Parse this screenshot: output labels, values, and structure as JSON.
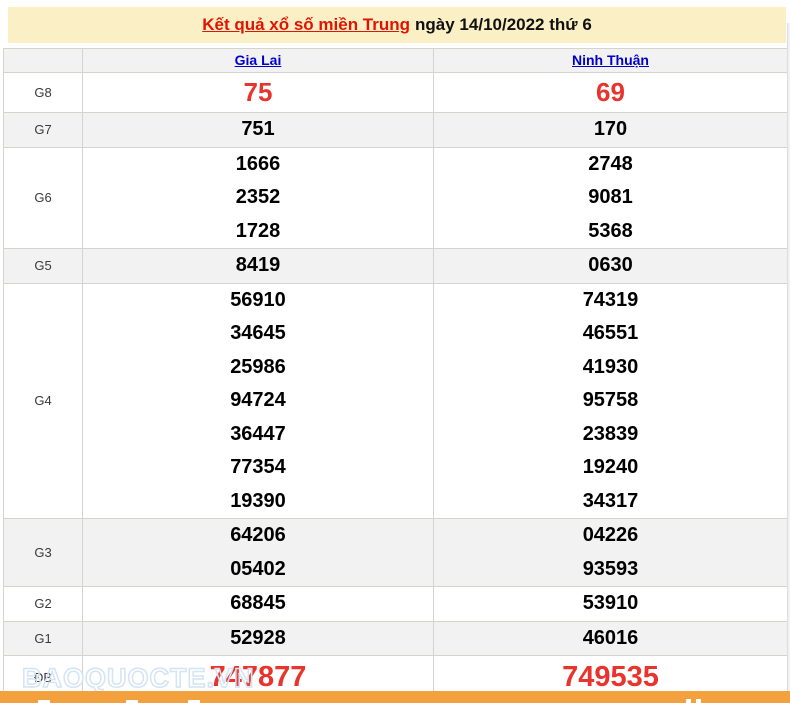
{
  "title": {
    "link": "Kết quả xổ số miền Trung",
    "rest": "ngày 14/10/2022 thứ 6"
  },
  "columns": [
    "Gia Lai",
    "Ninh Thuận"
  ],
  "results": {
    "rows": [
      {
        "key": "g8",
        "label": "G8",
        "highlight": true,
        "gia_lai": [
          "75"
        ],
        "ninh_thuan": [
          "69"
        ]
      },
      {
        "key": "g7",
        "label": "G7",
        "highlight": false,
        "gia_lai": [
          "751"
        ],
        "ninh_thuan": [
          "170"
        ]
      },
      {
        "key": "g6",
        "label": "G6",
        "highlight": false,
        "gia_lai": [
          "1666",
          "2352",
          "1728"
        ],
        "ninh_thuan": [
          "2748",
          "9081",
          "5368"
        ]
      },
      {
        "key": "g5",
        "label": "G5",
        "highlight": false,
        "gia_lai": [
          "8419"
        ],
        "ninh_thuan": [
          "0630"
        ]
      },
      {
        "key": "g4",
        "label": "G4",
        "highlight": false,
        "gia_lai": [
          "56910",
          "34645",
          "25986",
          "94724",
          "36447",
          "77354",
          "19390"
        ],
        "ninh_thuan": [
          "74319",
          "46551",
          "41930",
          "95758",
          "23839",
          "19240",
          "34317"
        ]
      },
      {
        "key": "g3",
        "label": "G3",
        "highlight": false,
        "gia_lai": [
          "64206",
          "05402"
        ],
        "ninh_thuan": [
          "04226",
          "93593"
        ]
      },
      {
        "key": "g2",
        "label": "G2",
        "highlight": false,
        "gia_lai": [
          "68845"
        ],
        "ninh_thuan": [
          "53910"
        ]
      },
      {
        "key": "g1",
        "label": "G1",
        "highlight": false,
        "gia_lai": [
          "52928"
        ],
        "ninh_thuan": [
          "46016"
        ]
      },
      {
        "key": "db",
        "label": "ĐB",
        "highlight": true,
        "gia_lai": [
          "747877"
        ],
        "ninh_thuan": [
          "749535"
        ]
      }
    ]
  },
  "watermark": "BAOQUOCTE.VN",
  "colors": {
    "title_background": "#FBF0C5",
    "title_link_red": "#E01400",
    "number_red": "#E8342C",
    "link_blue": "#0000CC",
    "stripe_gray": "#F2F2F2",
    "border_gray": "#D6D2CC",
    "bottom_orange": "#F2A13E",
    "watermark_blue": "#D3E4F3"
  }
}
